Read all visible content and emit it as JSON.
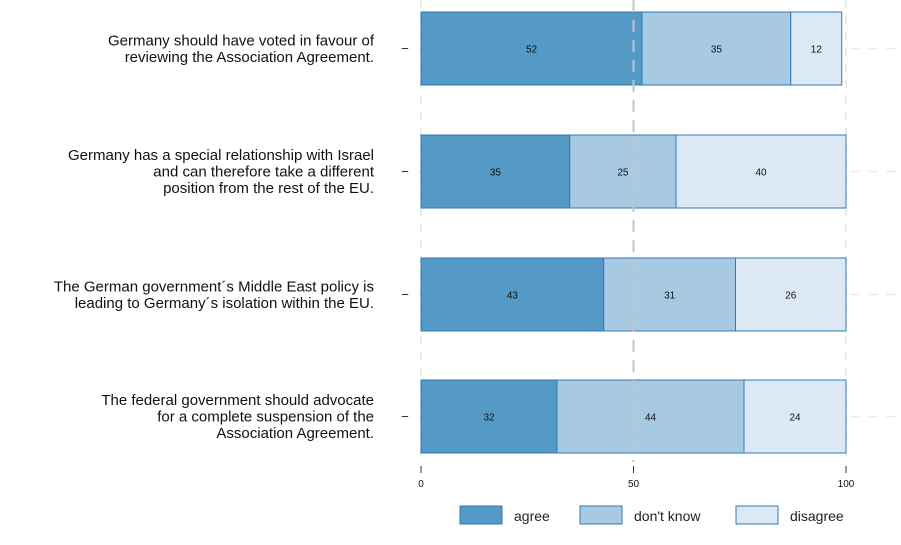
{
  "chart_data": {
    "type": "bar",
    "orientation": "horizontal",
    "stacked": true,
    "categories": [
      [
        "Germany should have voted in favour of",
        "reviewing the Association Agreement."
      ],
      [
        "Germany has a special relationship with Israel",
        "and can therefore take a different",
        "position from the rest of the EU."
      ],
      [
        "The German government´s Middle East policy is",
        "leading to Germany´s isolation within the EU."
      ],
      [
        "The federal government should advocate",
        "for a complete suspension of the",
        "Association Agreement."
      ]
    ],
    "series": [
      {
        "name": "agree",
        "color": "#5599c7",
        "values": [
          52,
          35,
          43,
          32
        ]
      },
      {
        "name": "don't know",
        "color": "#a8c9e2",
        "values": [
          35,
          25,
          31,
          44
        ]
      },
      {
        "name": "disagree",
        "color": "#dce9f4",
        "values": [
          12,
          40,
          26,
          24
        ]
      }
    ],
    "xlim": [
      0,
      100
    ],
    "xticks": [
      "0",
      "50",
      "100"
    ],
    "reference_line": 50,
    "legend_position": "bottom",
    "xlabel": "",
    "ylabel": "",
    "title": ""
  }
}
